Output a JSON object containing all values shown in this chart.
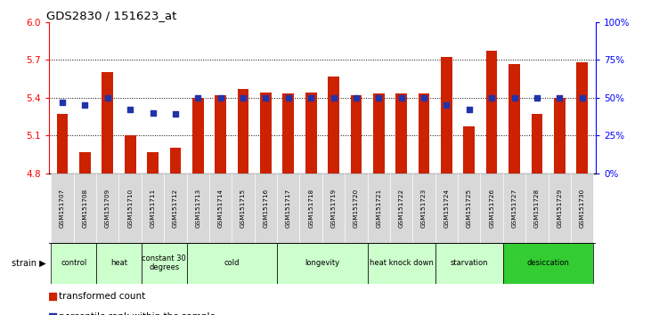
{
  "title": "GDS2830 / 151623_at",
  "categories": [
    "GSM151707",
    "GSM151708",
    "GSM151709",
    "GSM151710",
    "GSM151711",
    "GSM151712",
    "GSM151713",
    "GSM151714",
    "GSM151715",
    "GSM151716",
    "GSM151717",
    "GSM151718",
    "GSM151719",
    "GSM151720",
    "GSM151721",
    "GSM151722",
    "GSM151723",
    "GSM151724",
    "GSM151725",
    "GSM151726",
    "GSM151727",
    "GSM151728",
    "GSM151729",
    "GSM151730"
  ],
  "bar_vals": [
    5.27,
    4.97,
    5.6,
    5.1,
    4.97,
    5.0,
    5.4,
    5.42,
    5.47,
    5.44,
    5.43,
    5.44,
    5.57,
    5.42,
    5.43,
    5.43,
    5.43,
    5.72,
    5.17,
    5.77,
    5.67,
    5.27,
    5.4,
    5.68
  ],
  "pct_vals": [
    47,
    45,
    50,
    42,
    40,
    39,
    50,
    50,
    50,
    50,
    50,
    50,
    50,
    50,
    50,
    50,
    50,
    45,
    42,
    50,
    50,
    50,
    50,
    50
  ],
  "ylim_left": [
    4.8,
    6.0
  ],
  "ylim_right": [
    0,
    100
  ],
  "yticks_left": [
    4.8,
    5.1,
    5.4,
    5.7,
    6.0
  ],
  "yticks_right": [
    0,
    25,
    50,
    75,
    100
  ],
  "ytick_labels_right": [
    "0%",
    "25%",
    "50%",
    "75%",
    "100%"
  ],
  "bar_color": "#CC2200",
  "percentile_color": "#2233AA",
  "background_color": "#ffffff",
  "strain_groups": [
    {
      "label": "control",
      "start": 0,
      "end": 2,
      "color": "#ccffcc"
    },
    {
      "label": "heat",
      "start": 2,
      "end": 4,
      "color": "#ccffcc"
    },
    {
      "label": "constant 30\ndegrees",
      "start": 4,
      "end": 6,
      "color": "#ccffcc"
    },
    {
      "label": "cold",
      "start": 6,
      "end": 10,
      "color": "#ccffcc"
    },
    {
      "label": "longevity",
      "start": 10,
      "end": 14,
      "color": "#ccffcc"
    },
    {
      "label": "heat knock down",
      "start": 14,
      "end": 17,
      "color": "#ccffcc"
    },
    {
      "label": "starvation",
      "start": 17,
      "end": 20,
      "color": "#ccffcc"
    },
    {
      "label": "desiccation",
      "start": 20,
      "end": 24,
      "color": "#33cc33"
    }
  ]
}
